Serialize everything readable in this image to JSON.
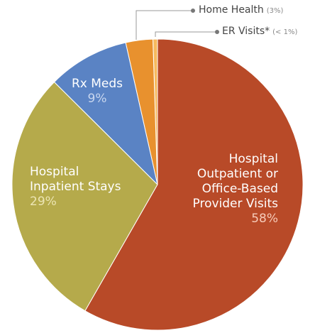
{
  "chart_data": {
    "type": "pie",
    "categories": [
      "Hospital\nOutpatient or\nOffice-Based\nProvider Visits",
      "Hospital\nInpatient Stays",
      "Rx Meds",
      "Home Health",
      "ER Visits*"
    ],
    "values": [
      58,
      29,
      9,
      3,
      0.5
    ],
    "value_labels": [
      "58%",
      "29%",
      "9%",
      "(3%)",
      "(< 1%)"
    ],
    "colors": [
      "#b84a28",
      "#b5aa4b",
      "#5a83c4",
      "#e8912e",
      "#f7b95e"
    ]
  }
}
